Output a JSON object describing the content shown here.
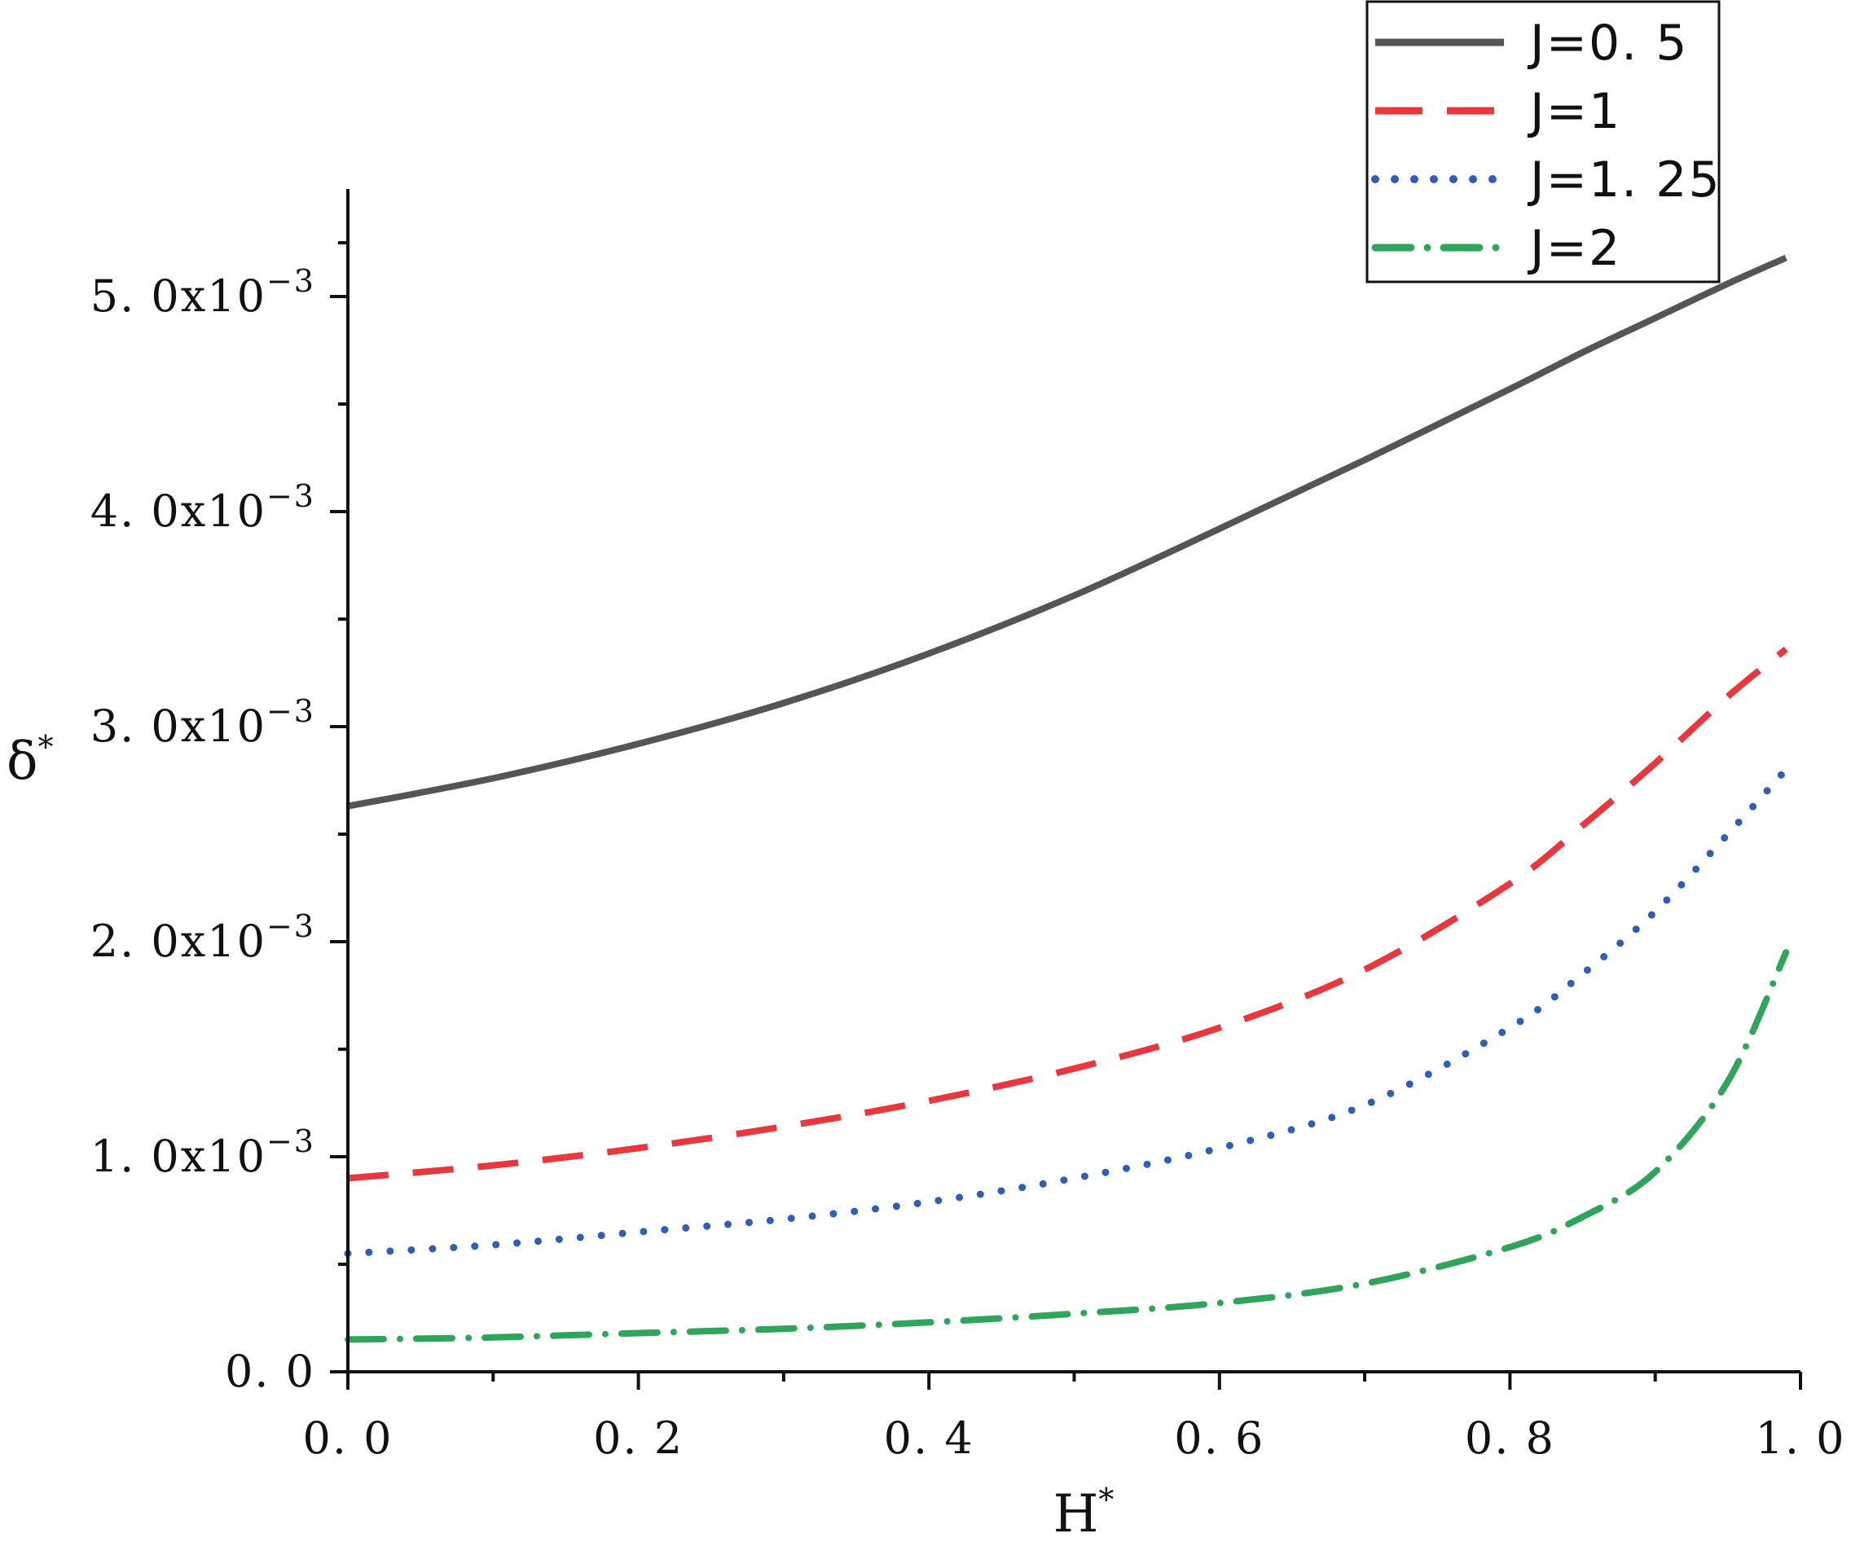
{
  "chart_data": {
    "type": "line",
    "xlabel": "H",
    "xlabel_sup": "*",
    "ylabel": "δ",
    "ylabel_sup": "*",
    "xlim": [
      0.0,
      1.0
    ],
    "ylim": [
      0.0,
      0.0055
    ],
    "x_ticks": [
      {
        "value": 0.0,
        "label": "0. 0"
      },
      {
        "value": 0.2,
        "label": "0. 2"
      },
      {
        "value": 0.4,
        "label": "0. 4"
      },
      {
        "value": 0.6,
        "label": "0. 6"
      },
      {
        "value": 0.8,
        "label": "0. 8"
      },
      {
        "value": 1.0,
        "label": "1. 0"
      }
    ],
    "y_ticks": [
      {
        "value": 0.0,
        "label": "0. 0",
        "exp": ""
      },
      {
        "value": 0.001,
        "label": "1. 0x10",
        "exp": "−3"
      },
      {
        "value": 0.002,
        "label": "2. 0x10",
        "exp": "−3"
      },
      {
        "value": 0.003,
        "label": "3. 0x10",
        "exp": "−3"
      },
      {
        "value": 0.004,
        "label": "4. 0x10",
        "exp": "−3"
      },
      {
        "value": 0.005,
        "label": "5. 0x10",
        "exp": "−3"
      }
    ],
    "legend_position": "top-right",
    "x": [
      0.0,
      0.1,
      0.2,
      0.3,
      0.4,
      0.5,
      0.6,
      0.7,
      0.8,
      0.85,
      0.9,
      0.95,
      0.99
    ],
    "series": [
      {
        "name": "J=0. 5",
        "color": "#555555",
        "dash": "solid",
        "values": [
          0.00263,
          0.00276,
          0.00292,
          0.00311,
          0.00334,
          0.00361,
          0.00392,
          0.00424,
          0.00457,
          0.00474,
          0.0049,
          0.00506,
          0.00518
        ]
      },
      {
        "name": "J=1",
        "color": "#e8383d",
        "dash": "dash",
        "values": [
          0.0009,
          0.00096,
          0.00104,
          0.00114,
          0.00126,
          0.00141,
          0.0016,
          0.00187,
          0.00227,
          0.00254,
          0.00283,
          0.00314,
          0.00336
        ]
      },
      {
        "name": "J=1. 25",
        "color": "#2f5db8",
        "dash": "dot",
        "values": [
          0.00055,
          0.00059,
          0.00065,
          0.00071,
          0.00079,
          0.0009,
          0.00104,
          0.00124,
          0.0016,
          0.00185,
          0.00214,
          0.0025,
          0.0028
        ]
      },
      {
        "name": "J=2",
        "color": "#2ea55a",
        "dash": "dashdot",
        "values": [
          0.00015,
          0.00016,
          0.00018,
          0.0002,
          0.00023,
          0.00027,
          0.00032,
          0.00041,
          0.00058,
          0.00072,
          0.00093,
          0.00135,
          0.00195
        ]
      }
    ]
  }
}
